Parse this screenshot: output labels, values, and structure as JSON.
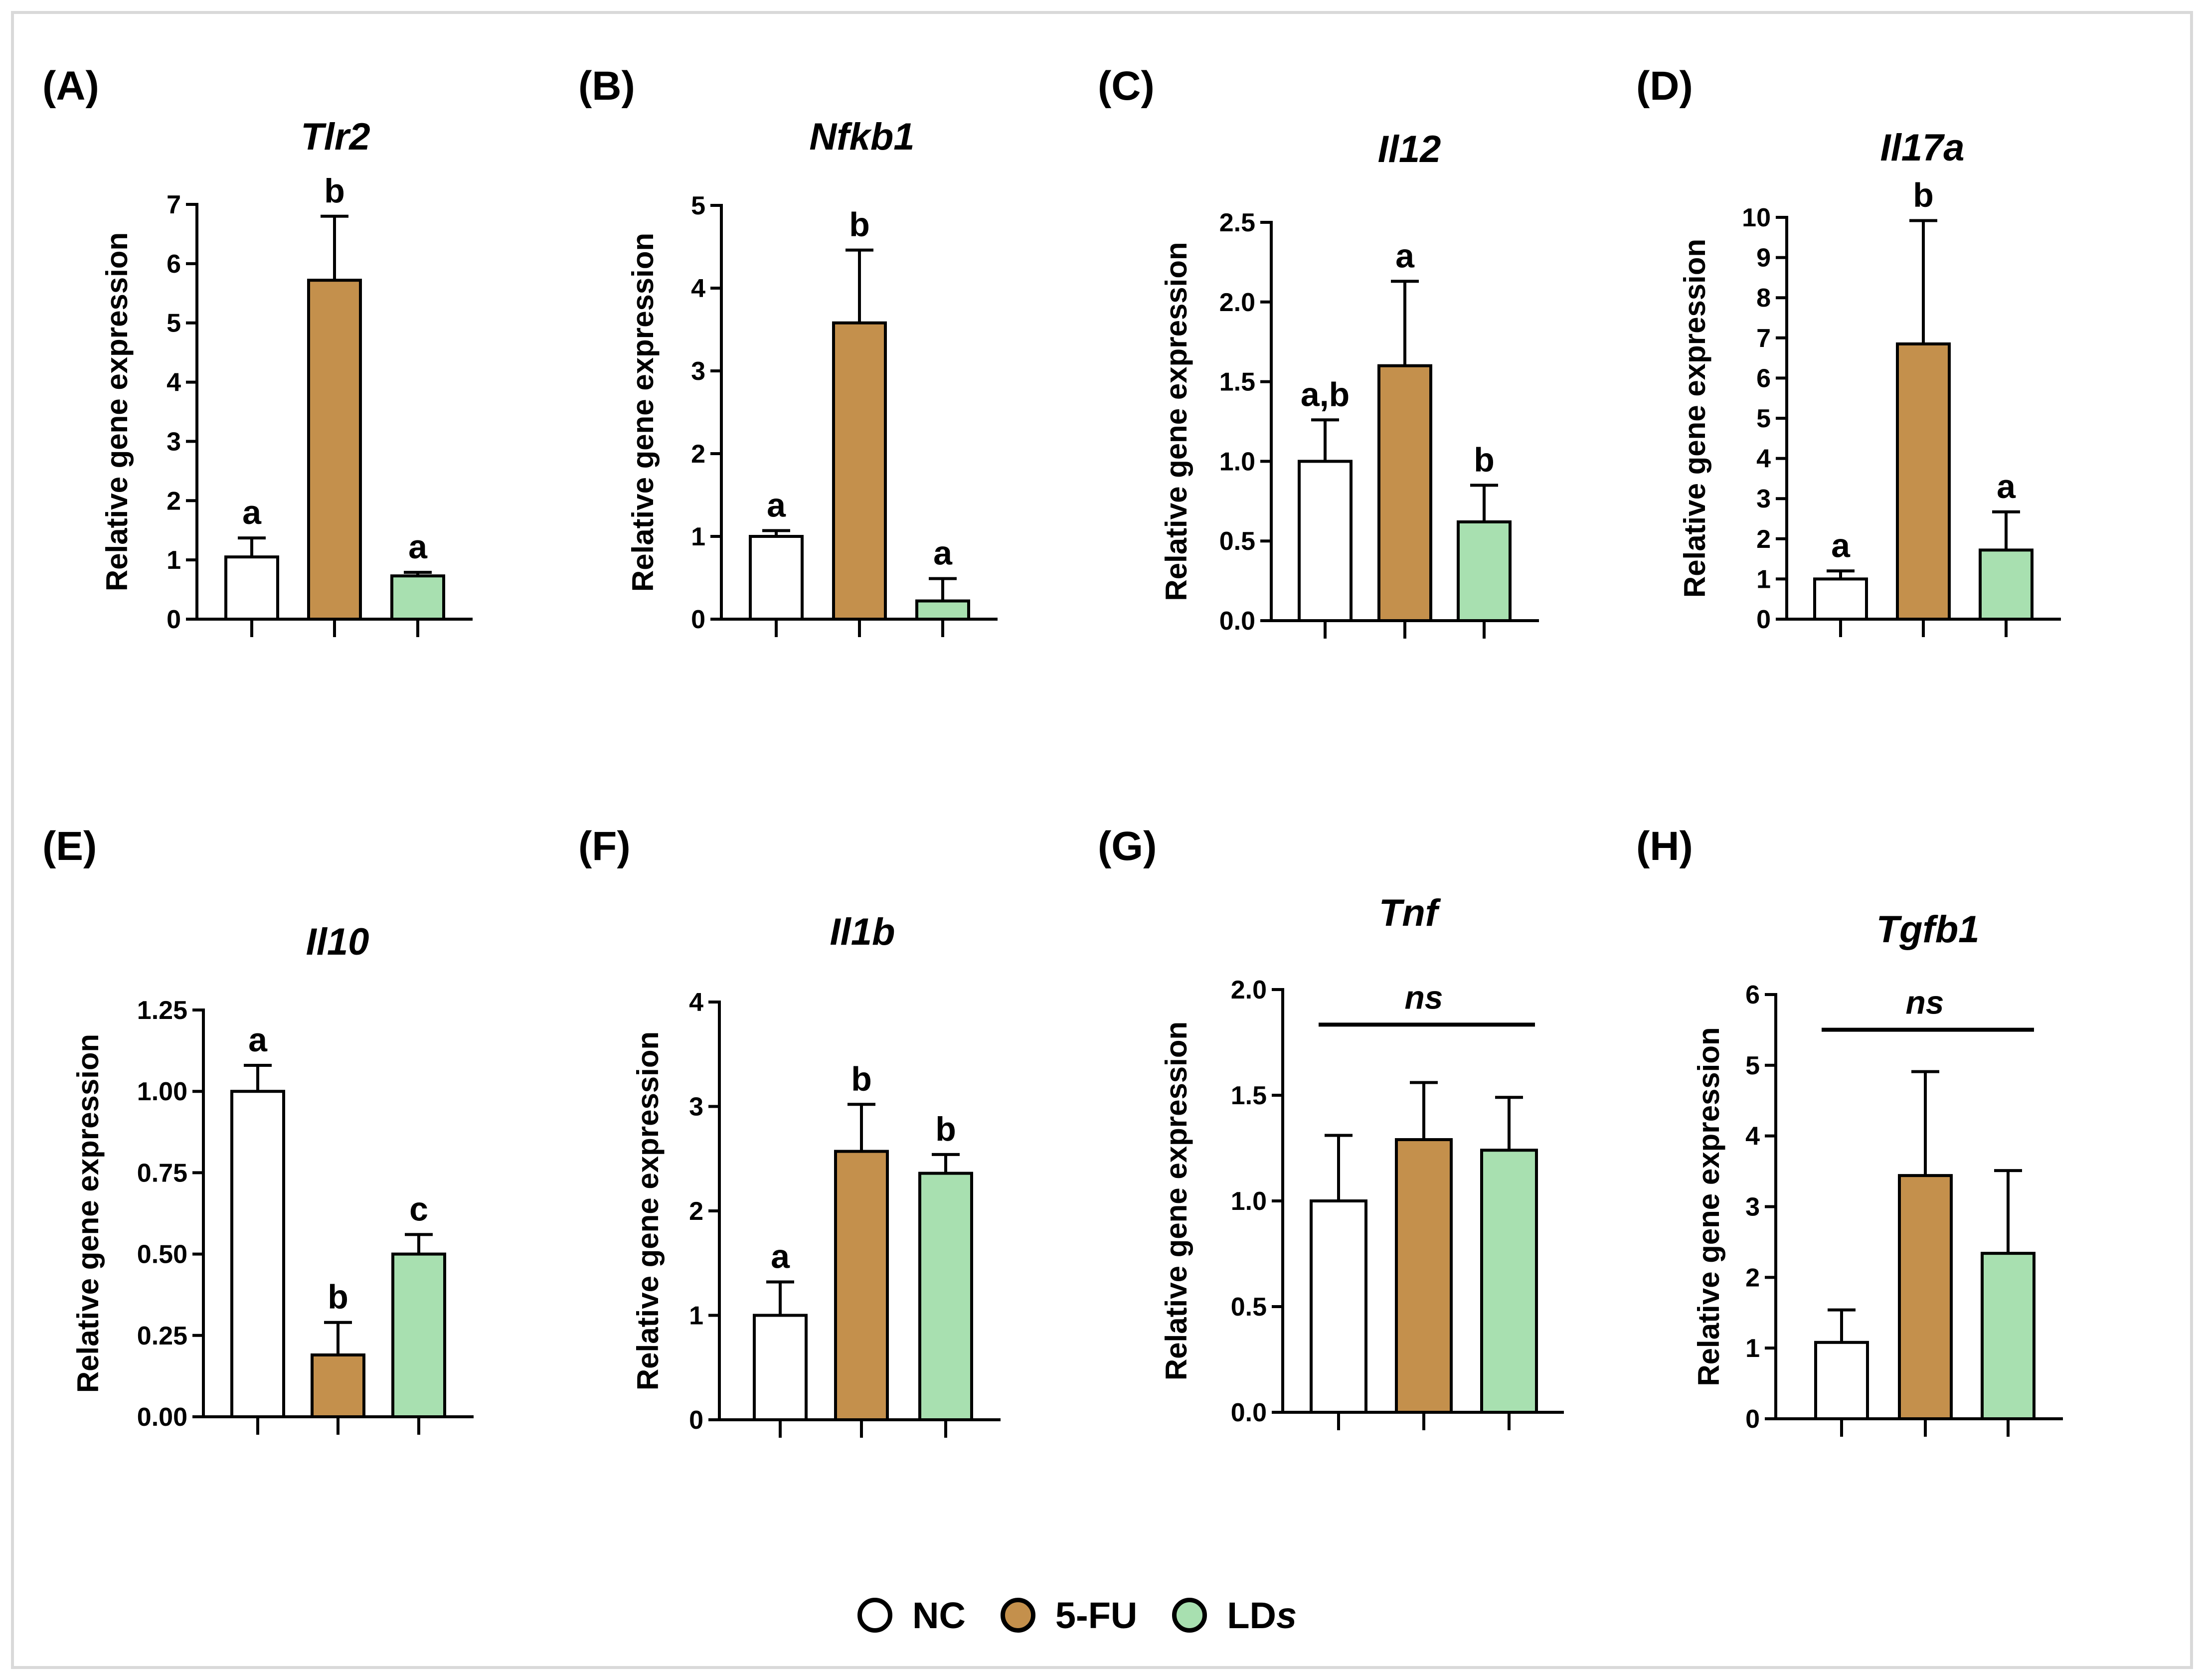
{
  "figure": {
    "y_axis_label": "Relative gene expression",
    "groups": [
      {
        "name": "NC",
        "color": "#ffffff"
      },
      {
        "name": "5-FU",
        "color": "#c4904c"
      },
      {
        "name": "LDs",
        "color": "#a8e0b0"
      }
    ]
  },
  "legend": {
    "nc": "NC",
    "fu": "5-FU",
    "lds_main": "LD",
    "lds_suffix": "s"
  },
  "chart_data": [
    {
      "type": "bar",
      "panel": "(A)",
      "title": "Tlr2",
      "categories": [
        "NC",
        "5-FU",
        "LDs"
      ],
      "values": [
        1.05,
        5.72,
        0.73
      ],
      "errors": [
        0.32,
        1.08,
        0.06
      ],
      "ylim": [
        0,
        7
      ],
      "yticks": [
        "0",
        "1",
        "2",
        "3",
        "4",
        "5",
        "6",
        "7"
      ],
      "letters": [
        "a",
        "b",
        "a"
      ],
      "ylabel": "Relative gene expression"
    },
    {
      "type": "bar",
      "panel": "(B)",
      "title": "Nfkb1",
      "categories": [
        "NC",
        "5-FU",
        "LDs"
      ],
      "values": [
        1.0,
        3.58,
        0.22
      ],
      "errors": [
        0.07,
        0.88,
        0.27
      ],
      "ylim": [
        0,
        5
      ],
      "yticks": [
        "0",
        "1",
        "2",
        "3",
        "4",
        "5"
      ],
      "letters": [
        "a",
        "b",
        "a"
      ],
      "ylabel": "Relative gene expression"
    },
    {
      "type": "bar",
      "panel": "(C)",
      "title": "Il12",
      "categories": [
        "NC",
        "5-FU",
        "LDs"
      ],
      "values": [
        1.0,
        1.6,
        0.62
      ],
      "errors": [
        0.26,
        0.53,
        0.23
      ],
      "ylim": [
        0,
        2.5
      ],
      "yticks": [
        "0.0",
        "0.5",
        "1.0",
        "1.5",
        "2.0",
        "2.5"
      ],
      "letters": [
        "a,b",
        "a",
        "b"
      ],
      "ylabel": "Relative gene expression"
    },
    {
      "type": "bar",
      "panel": "(D)",
      "title": "Il17a",
      "categories": [
        "NC",
        "5-FU",
        "LDs"
      ],
      "values": [
        1.0,
        6.85,
        1.72
      ],
      "errors": [
        0.2,
        3.07,
        0.95
      ],
      "ylim": [
        0,
        10
      ],
      "yticks": [
        "0",
        "1",
        "2",
        "3",
        "4",
        "5",
        "6",
        "7",
        "8",
        "9",
        "10"
      ],
      "letters": [
        "a",
        "b",
        "a"
      ],
      "ylabel": "Relative gene expression"
    },
    {
      "type": "bar",
      "panel": "(E)",
      "title": "Il10",
      "categories": [
        "NC",
        "5-FU",
        "LDs"
      ],
      "values": [
        1.0,
        0.19,
        0.5
      ],
      "errors": [
        0.08,
        0.1,
        0.06
      ],
      "ylim": [
        0,
        1.25
      ],
      "yticks": [
        "0.00",
        "0.25",
        "0.50",
        "0.75",
        "1.00",
        "1.25"
      ],
      "letters": [
        "a",
        "b",
        "c"
      ],
      "ylabel": "Relative gene expression"
    },
    {
      "type": "bar",
      "panel": "(F)",
      "title": "Il1b",
      "categories": [
        "NC",
        "5-FU",
        "LDs"
      ],
      "values": [
        1.0,
        2.57,
        2.36
      ],
      "errors": [
        0.32,
        0.45,
        0.18
      ],
      "ylim": [
        0,
        4
      ],
      "yticks": [
        "0",
        "1",
        "2",
        "3",
        "4"
      ],
      "letters": [
        "a",
        "b",
        "b"
      ],
      "ylabel": "Relative gene expression"
    },
    {
      "type": "bar",
      "panel": "(G)",
      "title": "Tnf",
      "categories": [
        "NC",
        "5-FU",
        "LDs"
      ],
      "values": [
        1.0,
        1.29,
        1.24
      ],
      "errors": [
        0.31,
        0.27,
        0.25
      ],
      "ylim": [
        0,
        2.0
      ],
      "yticks": [
        "0.0",
        "0.5",
        "1.0",
        "1.5",
        "2.0"
      ],
      "letters": [],
      "significance": "ns",
      "ylabel": "Relative gene expression"
    },
    {
      "type": "bar",
      "panel": "(H)",
      "title": "Tgfb1",
      "categories": [
        "NC",
        "5-FU",
        "LDs"
      ],
      "values": [
        1.08,
        3.44,
        2.34
      ],
      "errors": [
        0.46,
        1.47,
        1.17
      ],
      "ylim": [
        0,
        6
      ],
      "yticks": [
        "0",
        "1",
        "2",
        "3",
        "4",
        "5",
        "6"
      ],
      "letters": [],
      "significance": "ns",
      "ylabel": "Relative gene expression"
    }
  ]
}
